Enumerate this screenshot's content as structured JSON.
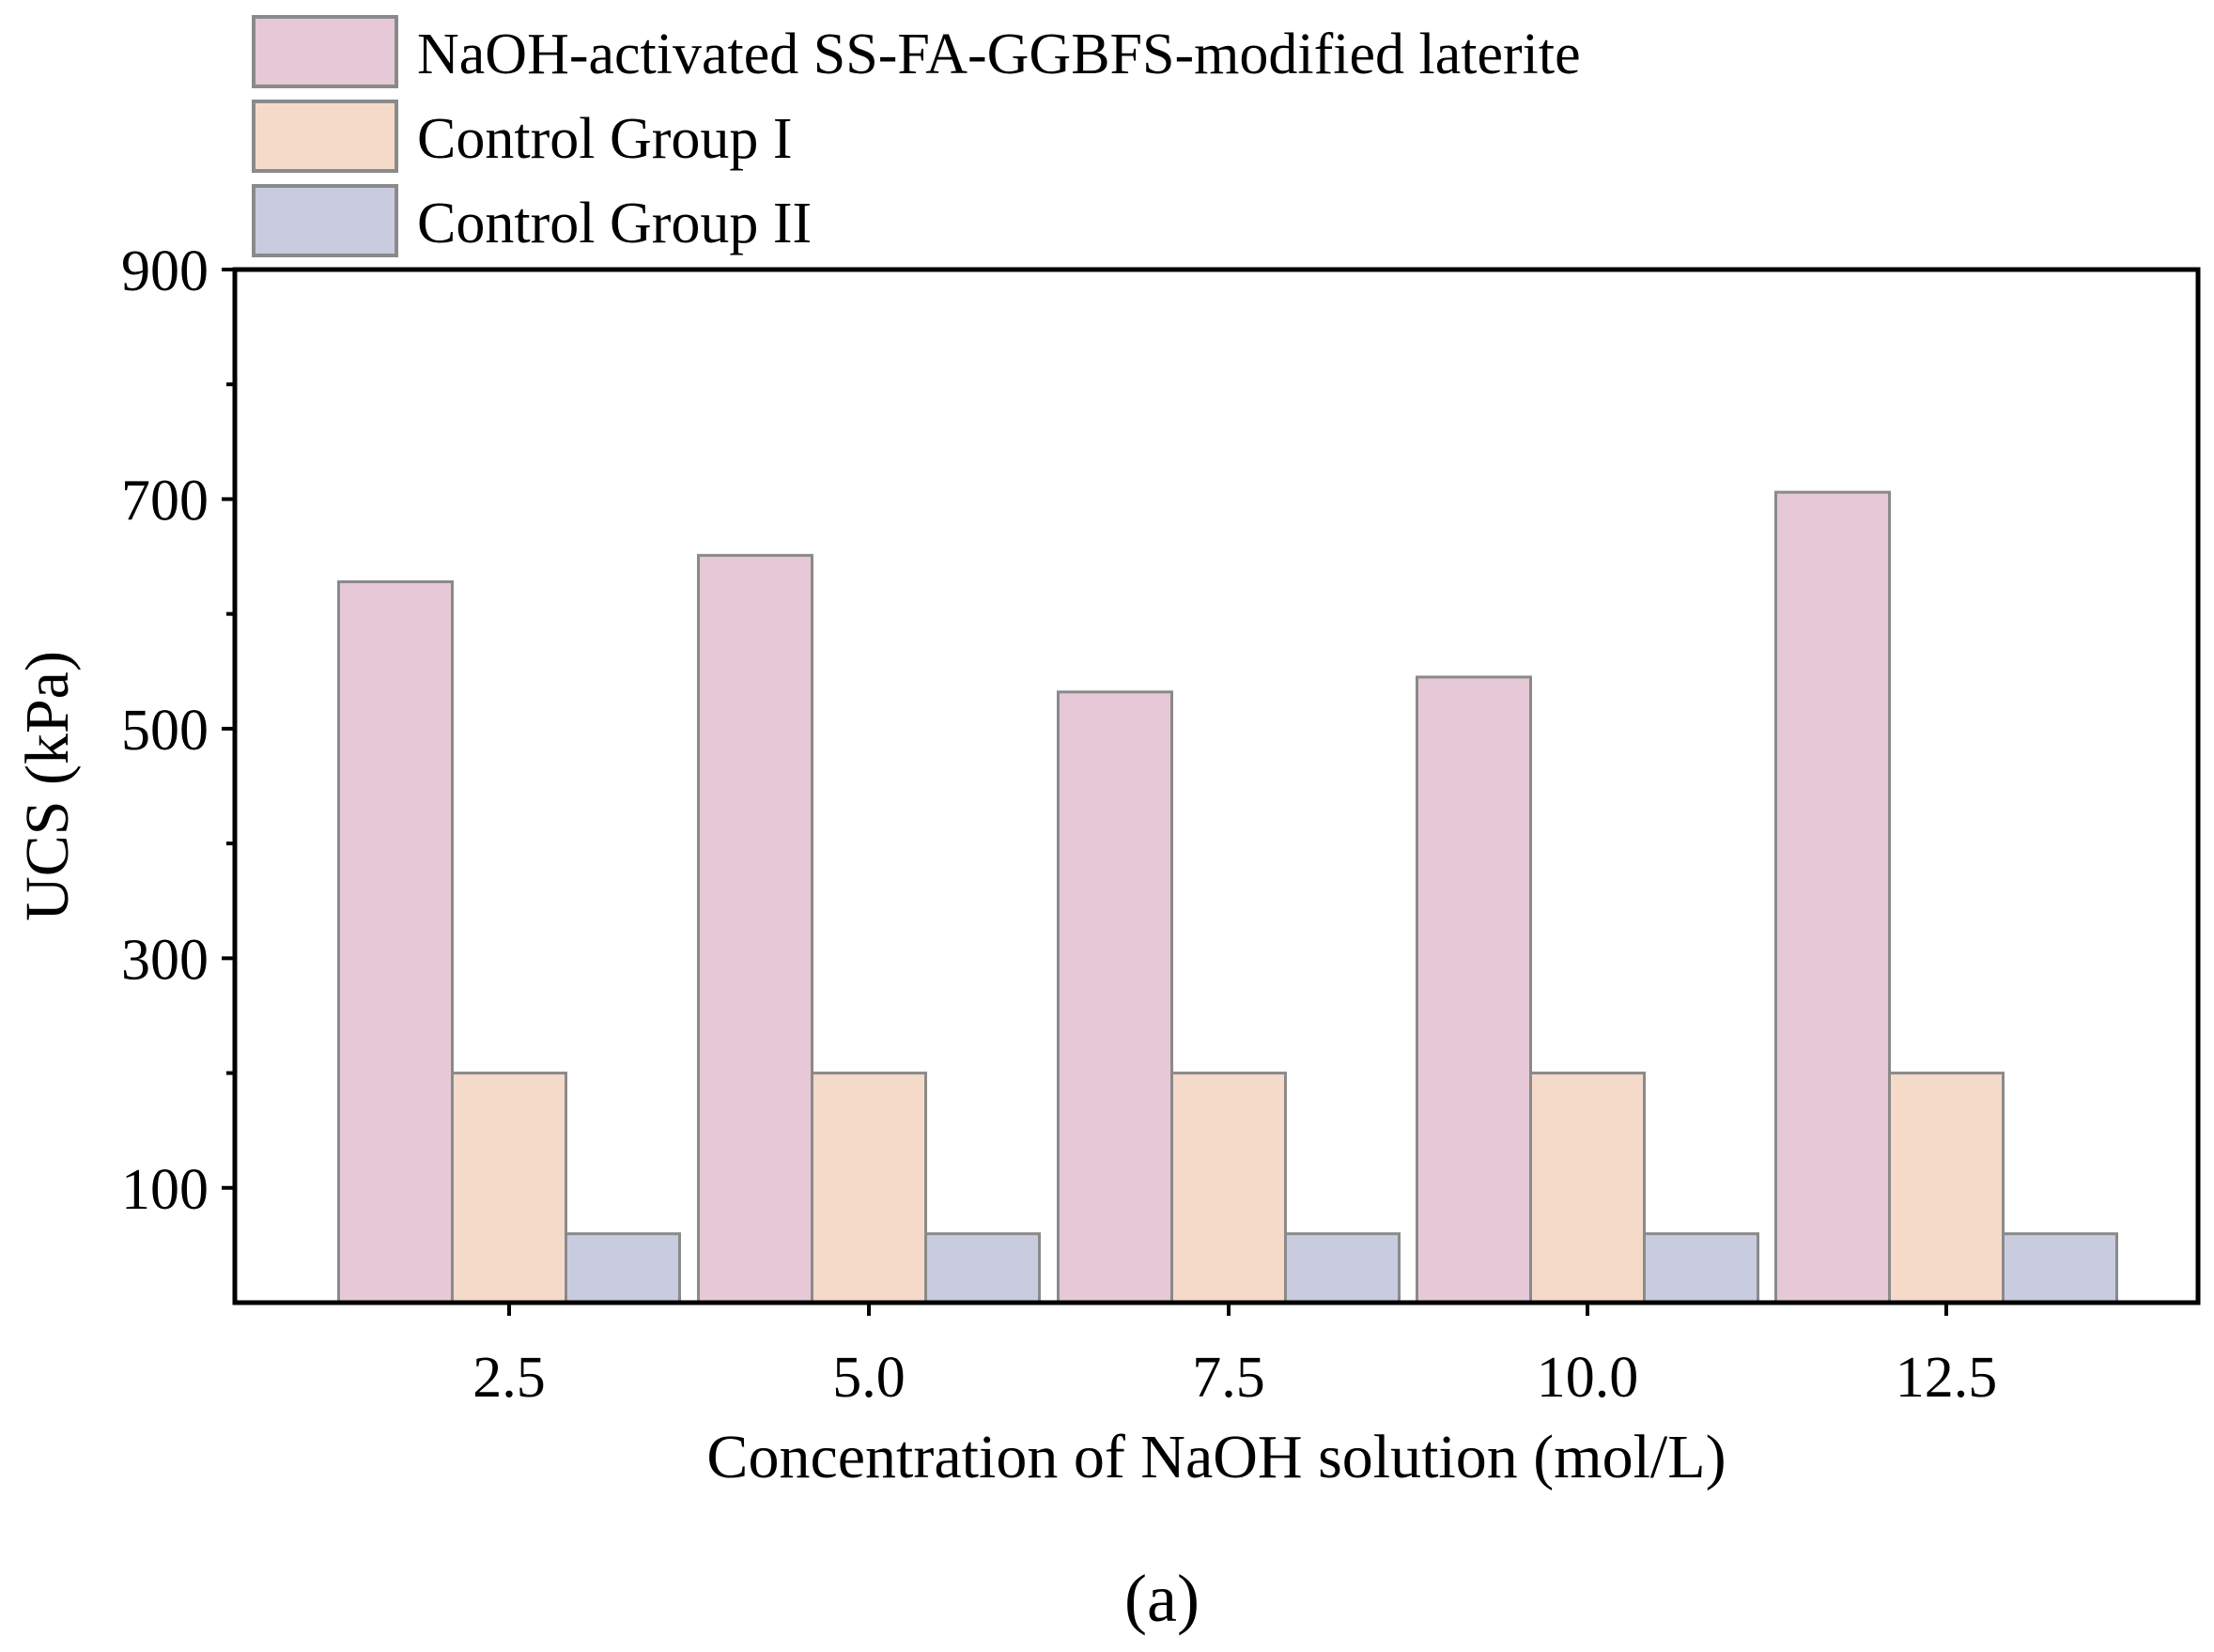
{
  "chart_data": {
    "type": "bar",
    "title": "",
    "xlabel": "Concentration of NaOH solution (mol/L)",
    "ylabel": "UCS (kPa)",
    "categories": [
      "2.5",
      "5.0",
      "7.5",
      "10.0",
      "12.5"
    ],
    "series": [
      {
        "name": "NaOH-activated SS-FA-GGBFS-modified laterite",
        "values": [
          628,
          651,
          532,
          545,
          706
        ],
        "color": "#e6c8d6"
      },
      {
        "name": "Control Group I",
        "values": [
          200,
          200,
          200,
          200,
          200
        ],
        "color": "#f6dac9"
      },
      {
        "name": "Control Group II",
        "values": [
          60,
          60,
          60,
          60,
          60
        ],
        "color": "#c9cbdf"
      }
    ],
    "ylim": [
      0,
      900
    ],
    "yticks": [
      100,
      300,
      500,
      700,
      900
    ],
    "yminor_ticks": [
      200,
      400,
      600,
      800
    ],
    "grid": false,
    "legend_position": "top-left, above plot"
  },
  "caption": "(a)",
  "colors": {
    "bar_edge": "#8a8a8a",
    "axis": "#000000"
  }
}
